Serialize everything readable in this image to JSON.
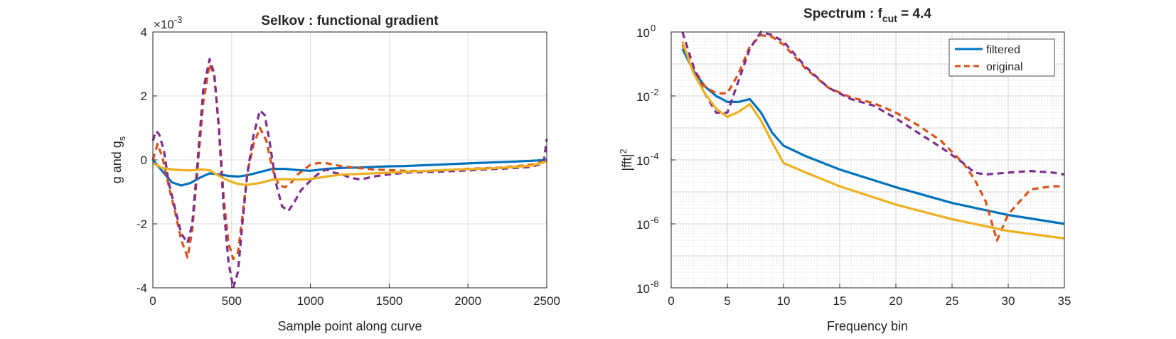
{
  "chart_data": [
    {
      "type": "line",
      "title": "Selkov : functional gradient",
      "xlabel": "Sample point along curve",
      "ylabel": "g and g",
      "ylabel_subscript": "s",
      "exponent_label": "×10",
      "exponent_power": "-3",
      "xlim": [
        0,
        2500
      ],
      "ylim": [
        -4,
        4
      ],
      "xticks": [
        "0",
        "500",
        "1000",
        "1500",
        "2000",
        "2500"
      ],
      "yticks": [
        "-4",
        "-2",
        "0",
        "2",
        "4"
      ],
      "xtick_values": [
        0,
        500,
        1000,
        1500,
        2000,
        2500
      ],
      "ytick_values": [
        -4,
        -2,
        0,
        2,
        4
      ],
      "grid": true,
      "series": [
        {
          "color": "#0072BD",
          "style": "solid",
          "x": [
            0,
            60,
            120,
            180,
            240,
            300,
            360,
            420,
            480,
            540,
            600,
            680,
            760,
            840,
            920,
            1000,
            1100,
            1200,
            1300,
            1400,
            1500,
            1600,
            1700,
            1800,
            1900,
            2000,
            2100,
            2200,
            2300,
            2400,
            2500
          ],
          "y": [
            0,
            -0.35,
            -0.7,
            -0.8,
            -0.72,
            -0.55,
            -0.42,
            -0.45,
            -0.5,
            -0.52,
            -0.48,
            -0.38,
            -0.28,
            -0.28,
            -0.32,
            -0.34,
            -0.28,
            -0.25,
            -0.24,
            -0.22,
            -0.2,
            -0.19,
            -0.17,
            -0.15,
            -0.13,
            -0.11,
            -0.09,
            -0.07,
            -0.05,
            -0.03,
            0
          ]
        },
        {
          "color": "#D95319",
          "style": "dashed",
          "x": [
            0,
            30,
            60,
            100,
            140,
            180,
            220,
            250,
            280,
            320,
            360,
            390,
            420,
            450,
            480,
            510,
            540,
            570,
            600,
            640,
            680,
            720,
            760,
            800,
            840,
            880,
            920,
            960,
            1000,
            1050,
            1100,
            1150,
            1200,
            1300,
            1400,
            1500,
            1600,
            1700,
            1800,
            1900,
            2000,
            2100,
            2200,
            2300,
            2400,
            2480,
            2500
          ],
          "y": [
            0,
            0.5,
            0.1,
            -0.8,
            -1.6,
            -2.5,
            -3.05,
            -2.2,
            -0.5,
            1.8,
            3.0,
            2.6,
            1.0,
            -1.2,
            -2.6,
            -3.1,
            -2.9,
            -1.7,
            -0.4,
            0.5,
            1.0,
            0.6,
            -0.3,
            -0.8,
            -0.85,
            -0.7,
            -0.45,
            -0.3,
            -0.15,
            -0.1,
            -0.1,
            -0.15,
            -0.2,
            -0.25,
            -0.3,
            -0.32,
            -0.34,
            -0.35,
            -0.33,
            -0.31,
            -0.28,
            -0.26,
            -0.24,
            -0.2,
            -0.15,
            -0.05,
            0
          ]
        },
        {
          "color": "#7E2F8E",
          "style": "dashed",
          "x": [
            0,
            20,
            40,
            70,
            100,
            140,
            180,
            220,
            250,
            280,
            320,
            360,
            390,
            420,
            450,
            480,
            510,
            540,
            570,
            600,
            640,
            680,
            710,
            740,
            780,
            820,
            860,
            900,
            940,
            980,
            1020,
            1060,
            1100,
            1150,
            1200,
            1250,
            1300,
            1350,
            1400,
            1500,
            1600,
            1700,
            1800,
            1900,
            2000,
            2100,
            2200,
            2300,
            2400,
            2480,
            2500
          ],
          "y": [
            0.6,
            0.9,
            0.8,
            0.3,
            -0.7,
            -1.5,
            -2.3,
            -2.6,
            -2.0,
            -0.3,
            2.2,
            3.15,
            2.7,
            0.9,
            -1.5,
            -3.2,
            -4.0,
            -3.5,
            -1.9,
            -0.4,
            0.8,
            1.55,
            1.4,
            0.6,
            -0.7,
            -1.45,
            -1.6,
            -1.3,
            -0.95,
            -0.75,
            -0.55,
            -0.4,
            -0.3,
            -0.4,
            -0.45,
            -0.55,
            -0.6,
            -0.58,
            -0.52,
            -0.45,
            -0.4,
            -0.38,
            -0.37,
            -0.35,
            -0.33,
            -0.3,
            -0.28,
            -0.25,
            -0.22,
            -0.1,
            0.65
          ]
        },
        {
          "color": "#EDB120",
          "style": "solid",
          "x": [
            0,
            60,
            120,
            180,
            240,
            300,
            360,
            420,
            480,
            540,
            600,
            680,
            760,
            840,
            920,
            1000,
            1100,
            1200,
            1300,
            1400,
            1500,
            1600,
            1700,
            1800,
            1900,
            2000,
            2100,
            2200,
            2300,
            2400,
            2500
          ],
          "y": [
            -0.1,
            -0.25,
            -0.3,
            -0.32,
            -0.33,
            -0.3,
            -0.32,
            -0.5,
            -0.65,
            -0.75,
            -0.78,
            -0.72,
            -0.62,
            -0.6,
            -0.62,
            -0.6,
            -0.52,
            -0.46,
            -0.44,
            -0.42,
            -0.4,
            -0.37,
            -0.35,
            -0.33,
            -0.31,
            -0.29,
            -0.27,
            -0.25,
            -0.22,
            -0.18,
            -0.05
          ]
        }
      ]
    },
    {
      "type": "line",
      "title_main": "Spectrum : f",
      "title_sub": "cut",
      "title_tail": " = 4.4",
      "xlabel": "Frequency bin",
      "ylabel": "|fft|",
      "ylabel_sup": "2",
      "yscale": "log",
      "xlim": [
        0,
        35
      ],
      "ylim": [
        1e-08,
        1
      ],
      "xticks": [
        "0",
        "5",
        "10",
        "15",
        "20",
        "25",
        "30",
        "35"
      ],
      "xtick_values": [
        0,
        5,
        10,
        15,
        20,
        25,
        30,
        35
      ],
      "yticks": [
        {
          "base": "10",
          "exp": "0",
          "value": 1
        },
        {
          "base": "10",
          "exp": "-2",
          "value": 0.01
        },
        {
          "base": "10",
          "exp": "-4",
          "value": 0.0001
        },
        {
          "base": "10",
          "exp": "-6",
          "value": 1e-06
        },
        {
          "base": "10",
          "exp": "-8",
          "value": 1e-08
        }
      ],
      "grid": true,
      "minor_grid": true,
      "legend": {
        "position": "top-right",
        "entries": [
          {
            "label": "filtered",
            "color": "#0072BD",
            "style": "solid"
          },
          {
            "label": "original",
            "color": "#D95319",
            "style": "dashed"
          }
        ]
      },
      "series": [
        {
          "name": "filtered",
          "color": "#0072BD",
          "style": "solid",
          "x": [
            1,
            2,
            3,
            4,
            5,
            6,
            7,
            8,
            9,
            10,
            12,
            15,
            20,
            25,
            30,
            35
          ],
          "y": [
            0.3,
            0.06,
            0.02,
            0.01,
            0.0065,
            0.0065,
            0.008,
            0.003,
            0.0007,
            0.00028,
            0.00013,
            5e-05,
            1.4e-05,
            4.5e-06,
            1.9e-06,
            1e-06
          ]
        },
        {
          "name": "original",
          "color": "#D95319",
          "style": "dashed",
          "x": [
            1,
            2,
            3,
            4,
            5,
            6,
            7,
            8,
            9,
            10,
            12,
            14,
            16,
            18,
            20,
            22,
            24,
            26,
            27,
            28,
            29,
            30,
            32,
            34,
            35
          ],
          "y": [
            0.4,
            0.07,
            0.02,
            0.012,
            0.012,
            0.05,
            0.35,
            0.8,
            0.7,
            0.4,
            0.07,
            0.018,
            0.009,
            0.006,
            0.003,
            0.0012,
            0.0004,
            8e-05,
            2.5e-05,
            5e-06,
            3e-07,
            2e-06,
            1.2e-05,
            1.5e-05,
            1.5e-05
          ]
        },
        {
          "color": "#7E2F8E",
          "style": "dashed",
          "x": [
            1,
            2,
            3,
            4,
            5,
            6,
            7,
            8,
            9,
            10,
            12,
            14,
            16,
            18,
            20,
            22,
            24,
            26,
            27,
            28,
            30,
            32,
            34,
            35
          ],
          "y": [
            1.0,
            0.08,
            0.012,
            0.003,
            0.003,
            0.03,
            0.3,
            1.0,
            0.8,
            0.5,
            0.08,
            0.018,
            0.008,
            0.005,
            0.002,
            0.0007,
            0.00025,
            8e-05,
            4e-05,
            3.5e-05,
            4e-05,
            4.5e-05,
            4e-05,
            3.5e-05
          ]
        },
        {
          "color": "#EDB120",
          "style": "solid",
          "x": [
            1,
            2,
            3,
            4,
            5,
            6,
            7,
            8,
            9,
            10,
            12,
            15,
            20,
            25,
            30,
            35
          ],
          "y": [
            0.5,
            0.05,
            0.012,
            0.004,
            0.0022,
            0.0032,
            0.0055,
            0.0017,
            0.00035,
            8e-05,
            4e-05,
            1.5e-05,
            4e-06,
            1.4e-06,
            6e-07,
            3.5e-07
          ]
        }
      ]
    }
  ]
}
